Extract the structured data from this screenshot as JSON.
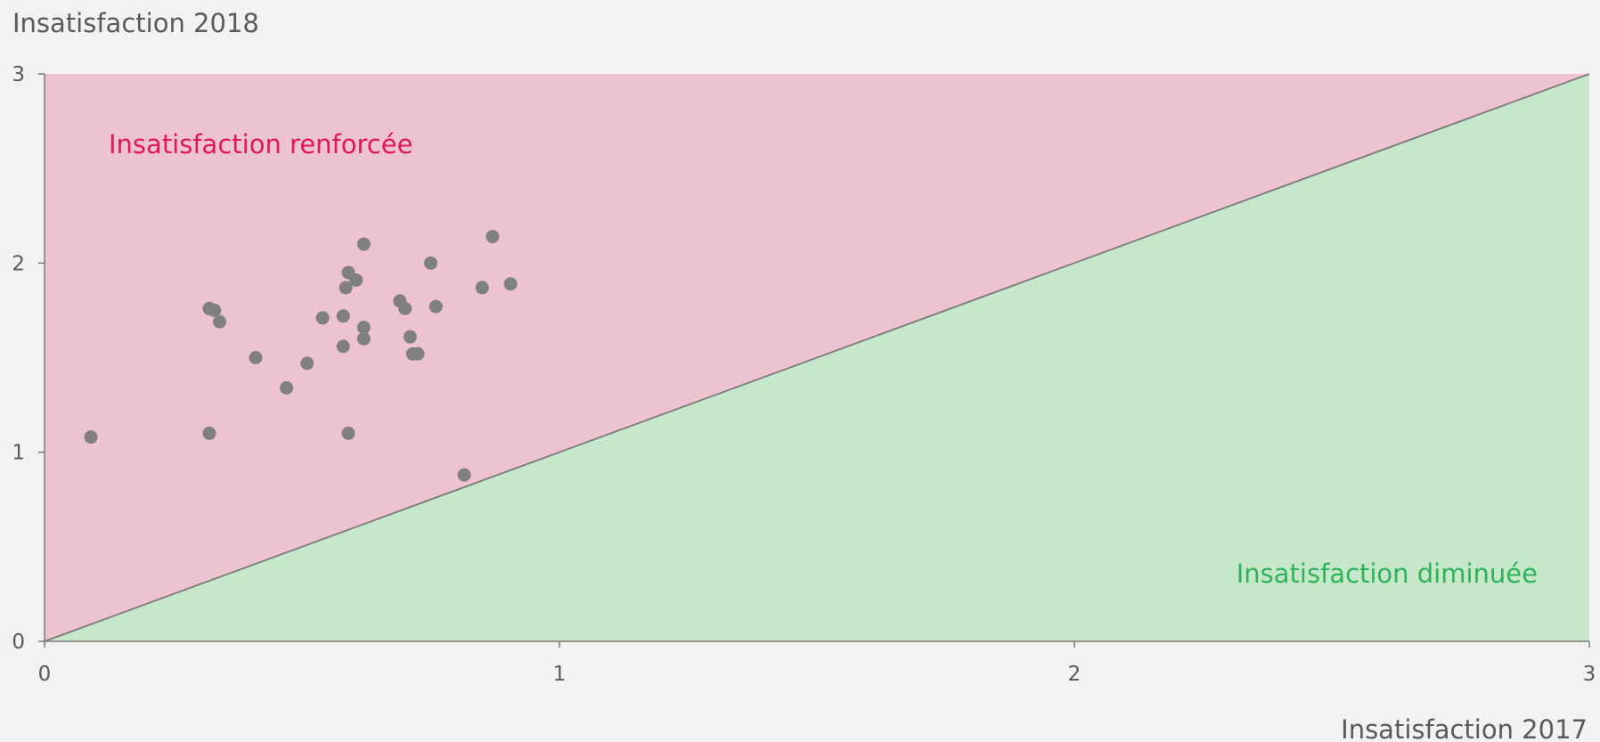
{
  "chart_data": {
    "type": "scatter",
    "title": "",
    "xlabel": "Insatisfaction 2017",
    "ylabel": "Insatisfaction 2018",
    "xlim": [
      0,
      3
    ],
    "ylim": [
      0,
      3
    ],
    "x_ticks": [
      "0",
      "1",
      "2",
      "3"
    ],
    "y_ticks": [
      "0",
      "1",
      "2",
      "3"
    ],
    "grid": false,
    "regions": [
      {
        "label": "Insatisfaction renforcée",
        "color": "#ecc3cf",
        "text_color": "#e0185a"
      },
      {
        "label": "Insatisfaction diminuée",
        "color": "#c7e7cb",
        "text_color": "#2fb35a"
      }
    ],
    "reference_line": {
      "from": [
        0,
        0
      ],
      "to": [
        3,
        3
      ],
      "color": "#7a7a7a"
    },
    "series": [
      {
        "color": "#808080",
        "points": [
          [
            0.09,
            1.08
          ],
          [
            0.32,
            1.1
          ],
          [
            0.32,
            1.76
          ],
          [
            0.33,
            1.75
          ],
          [
            0.34,
            1.69
          ],
          [
            0.41,
            1.5
          ],
          [
            0.47,
            1.34
          ],
          [
            0.51,
            1.47
          ],
          [
            0.54,
            1.71
          ],
          [
            0.58,
            1.72
          ],
          [
            0.58,
            1.56
          ],
          [
            0.585,
            1.87
          ],
          [
            0.59,
            1.95
          ],
          [
            0.59,
            1.1
          ],
          [
            0.605,
            1.91
          ],
          [
            0.62,
            2.1
          ],
          [
            0.62,
            1.66
          ],
          [
            0.62,
            1.6
          ],
          [
            0.69,
            1.8
          ],
          [
            0.7,
            1.76
          ],
          [
            0.71,
            1.61
          ],
          [
            0.715,
            1.52
          ],
          [
            0.725,
            1.52
          ],
          [
            0.75,
            2.0
          ],
          [
            0.76,
            1.77
          ],
          [
            0.815,
            0.88
          ],
          [
            0.85,
            1.87
          ],
          [
            0.87,
            2.14
          ],
          [
            0.905,
            1.89
          ]
        ]
      }
    ]
  }
}
